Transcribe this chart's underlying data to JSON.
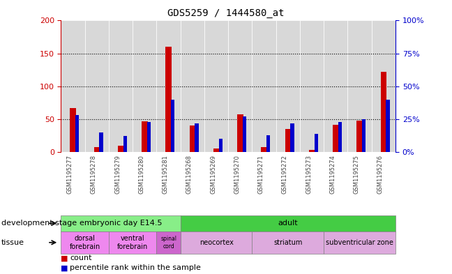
{
  "title": "GDS5259 / 1444580_at",
  "samples": [
    "GSM1195277",
    "GSM1195278",
    "GSM1195279",
    "GSM1195280",
    "GSM1195281",
    "GSM1195268",
    "GSM1195269",
    "GSM1195270",
    "GSM1195271",
    "GSM1195272",
    "GSM1195273",
    "GSM1195274",
    "GSM1195275",
    "GSM1195276"
  ],
  "counts": [
    67,
    8,
    10,
    47,
    160,
    40,
    5,
    57,
    8,
    35,
    3,
    42,
    48,
    122
  ],
  "percentiles": [
    28,
    15,
    12,
    23,
    40,
    22,
    10,
    27,
    13,
    22,
    14,
    23,
    25,
    40
  ],
  "ylim_left": [
    0,
    200
  ],
  "ylim_right": [
    0,
    100
  ],
  "yticks_left": [
    0,
    50,
    100,
    150,
    200
  ],
  "yticks_right": [
    0,
    25,
    50,
    75,
    100
  ],
  "bar_color_count": "#cc0000",
  "bar_color_pct": "#0000cc",
  "dev_stage_groups": [
    {
      "label": "embryonic day E14.5",
      "start": 0,
      "end": 5,
      "color": "#88ee88"
    },
    {
      "label": "adult",
      "start": 5,
      "end": 14,
      "color": "#44cc44"
    }
  ],
  "tissue_groups": [
    {
      "label": "dorsal\nforebrain",
      "start": 0,
      "end": 2,
      "color": "#ee88ee"
    },
    {
      "label": "ventral\nforebrain",
      "start": 2,
      "end": 4,
      "color": "#ee88ee"
    },
    {
      "label": "spinal\ncord",
      "start": 4,
      "end": 5,
      "color": "#cc66cc"
    },
    {
      "label": "neocortex",
      "start": 5,
      "end": 8,
      "color": "#ddaadd"
    },
    {
      "label": "striatum",
      "start": 8,
      "end": 11,
      "color": "#ddaadd"
    },
    {
      "label": "subventricular zone",
      "start": 11,
      "end": 14,
      "color": "#ddaadd"
    }
  ],
  "col_bg_color": "#d8d8d8",
  "bg_color": "#ffffff",
  "label_color_left": "#cc0000",
  "label_color_right": "#0000cc"
}
